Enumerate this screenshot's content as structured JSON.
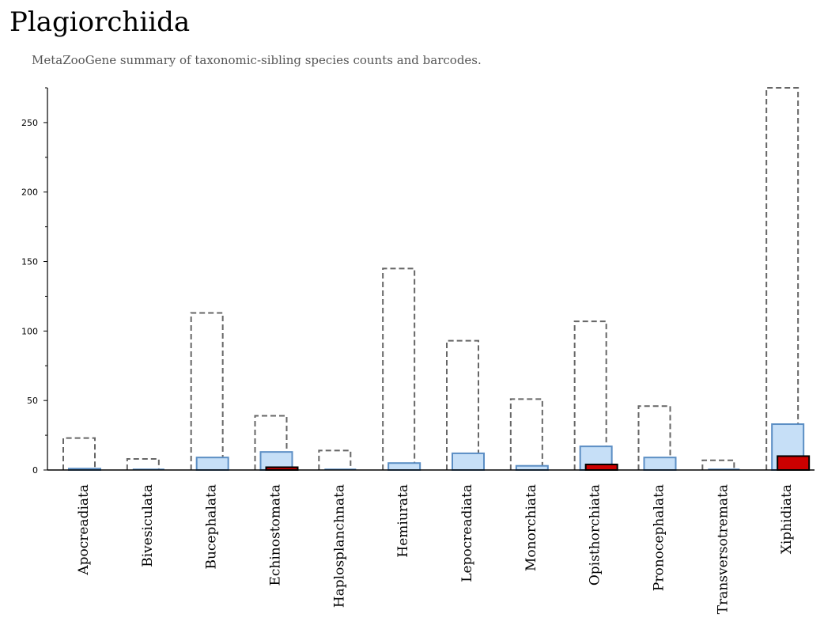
{
  "header": {
    "title": "Plagiorchiida",
    "subtitle": "MetaZooGene summary of taxonomic-sibling species counts and barcodes."
  },
  "colors": {
    "total_outline": "#666666",
    "species_fill": "#c6dff7",
    "species_stroke": "#5b8ec4",
    "barcode_fill": "#cc0000",
    "barcode_stroke": "#000000"
  },
  "chart_data": {
    "type": "bar",
    "title": "",
    "xlabel": "",
    "ylabel": "",
    "ylim": [
      0,
      275
    ],
    "yticks": [
      0,
      50,
      100,
      150,
      200,
      250
    ],
    "grid": false,
    "categories": [
      "Apocreadiata",
      "Bivesiculata",
      "Bucephalata",
      "Echinostomata",
      "Haplosplanchnata",
      "Hemiurata",
      "Lepocreadiata",
      "Monorchiata",
      "Opisthorchiata",
      "Pronocephalata",
      "Transversotremata",
      "Xiphidiata"
    ],
    "series": [
      {
        "style": "dashed-outline",
        "values": [
          23,
          8,
          113,
          39,
          14,
          145,
          93,
          51,
          107,
          46,
          7,
          275
        ]
      },
      {
        "style": "light-blue",
        "values": [
          1,
          0,
          9,
          13,
          0,
          5,
          12,
          3,
          17,
          9,
          0,
          33
        ]
      },
      {
        "style": "red",
        "values": [
          0,
          0,
          0,
          2,
          0,
          0,
          0,
          0,
          4,
          0,
          0,
          10
        ]
      }
    ]
  }
}
